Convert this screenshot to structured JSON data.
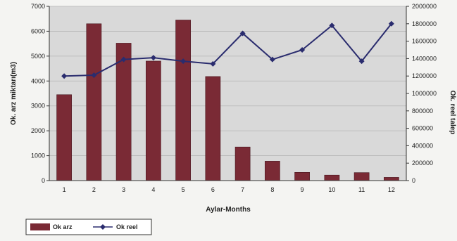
{
  "chart_data": {
    "type": "bar+line",
    "categories": [
      "1",
      "2",
      "3",
      "4",
      "5",
      "6",
      "7",
      "8",
      "9",
      "10",
      "11",
      "12"
    ],
    "series": [
      {
        "name": "Ok arz",
        "kind": "bar",
        "axis": "left",
        "color": "#7a2a35",
        "values": [
          3450,
          6300,
          5520,
          4800,
          6450,
          4180,
          1350,
          780,
          330,
          220,
          320,
          130
        ]
      },
      {
        "name": "Ok reel",
        "kind": "line",
        "axis": "right",
        "color": "#2a2c6e",
        "values": [
          1200000,
          1210000,
          1390000,
          1410000,
          1370000,
          1340000,
          1690000,
          1390000,
          1500000,
          1780000,
          1370000,
          1800000
        ]
      }
    ],
    "xlabel": "Aylar-Months",
    "ylabel_left": "Ok. arz miktarı(m3)",
    "ylabel_right": "Ok. reel talep",
    "ylim_left": [
      0,
      7000
    ],
    "ylim_right": [
      0,
      2000000
    ],
    "yticks_left": [
      "0",
      "1000",
      "2000",
      "3000",
      "4000",
      "5000",
      "6000",
      "7000"
    ],
    "yticks_right": [
      "0",
      "200000",
      "400000",
      "600000",
      "800000",
      "1000000",
      "1200000",
      "1400000",
      "1600000",
      "1800000",
      "2000000"
    ],
    "grid": true,
    "legend_position": "bottom-left"
  }
}
